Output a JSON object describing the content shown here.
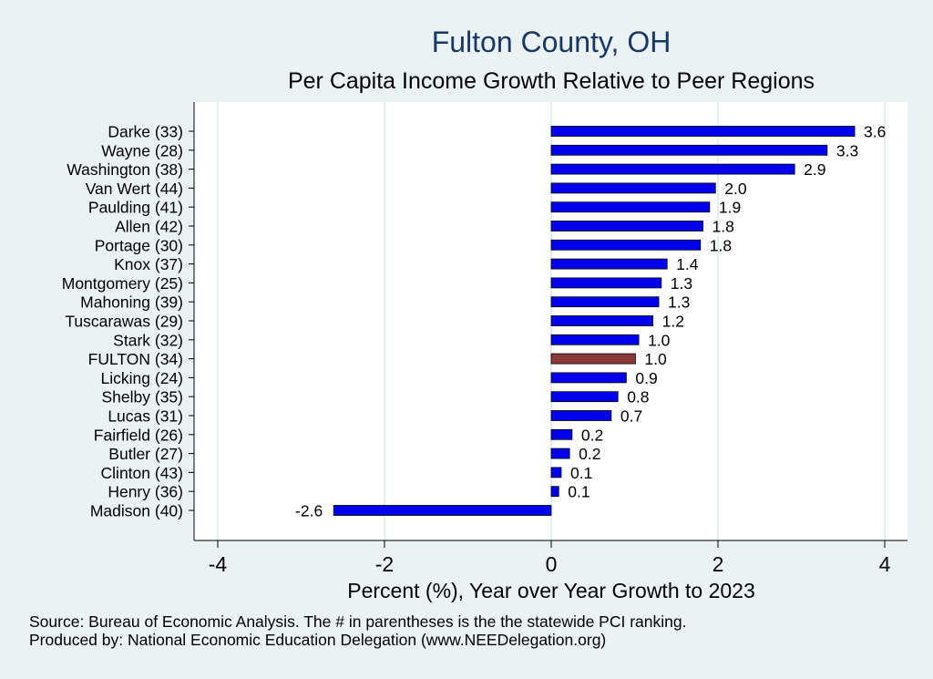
{
  "chart_data": {
    "type": "bar",
    "orientation": "horizontal",
    "title": "Fulton County, OH",
    "subtitle": "Per Capita Income Growth Relative to Peer Regions",
    "xlabel": "Percent (%), Year over Year Growth to 2023",
    "xlim": [
      -4.2,
      4.3
    ],
    "xticks": [
      -4,
      -2,
      0,
      2,
      4
    ],
    "grid": true,
    "categories": [
      "Darke (33)",
      "Wayne (28)",
      "Washington (38)",
      "Van Wert (44)",
      "Paulding (41)",
      "Allen (42)",
      "Portage (30)",
      "Knox (37)",
      "Montgomery (25)",
      "Mahoning (39)",
      "Tuscarawas (29)",
      "Stark (32)",
      "FULTON (34)",
      "Licking (24)",
      "Shelby (35)",
      "Lucas (31)",
      "Fairfield (26)",
      "Butler (27)",
      "Clinton (43)",
      "Henry (36)",
      "Madison (40)"
    ],
    "values": [
      3.64,
      3.31,
      2.92,
      1.97,
      1.9,
      1.82,
      1.79,
      1.39,
      1.32,
      1.29,
      1.22,
      1.05,
      1.01,
      0.9,
      0.8,
      0.72,
      0.25,
      0.22,
      0.12,
      0.09,
      -2.61
    ],
    "labels": [
      "3.6",
      "3.3",
      "2.9",
      "2.0",
      "1.9",
      "1.8",
      "1.8",
      "1.4",
      "1.3",
      "1.3",
      "1.2",
      "1.0",
      "1.0",
      "0.9",
      "0.8",
      "0.7",
      "0.2",
      "0.2",
      "0.1",
      "0.1",
      "-2.6"
    ],
    "highlight": "FULTON (34)",
    "colors": {
      "bar": "#0000ee",
      "highlight": "#8b3a3a",
      "grid": "#dde9ea",
      "plot_bg": "#ffffff"
    }
  },
  "footer": {
    "source": "Source: Bureau of Economic Analysis. The # in parentheses is the the statewide PCI ranking.",
    "producer": "Produced by: National Economic Education Delegation (www.NEEDelegation.org)"
  }
}
